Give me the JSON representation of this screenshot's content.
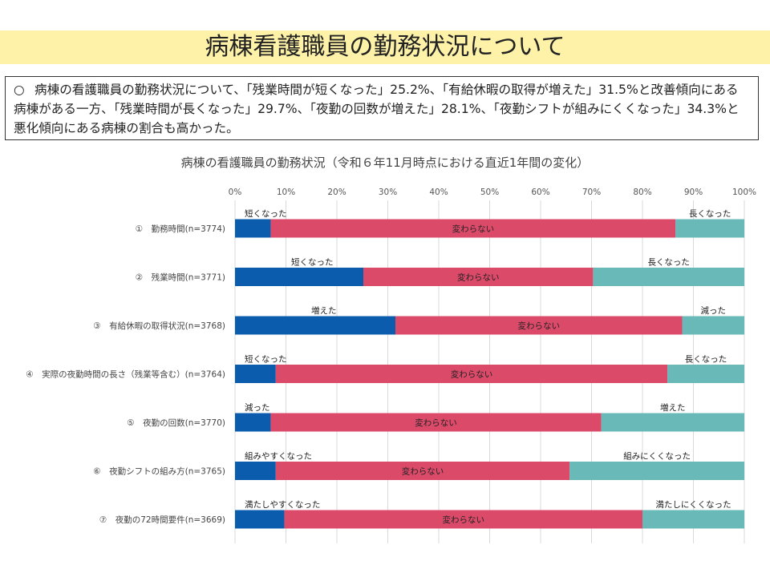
{
  "page": {
    "title": "病棟看護職員の勤務状況について",
    "summary_bullet": "○",
    "summary": "病棟の看護職員の勤務状況について、「残業時間が短くなった」25.2%、「有給休暇の取得が増えた」31.5%と改善傾向にある病棟がある一方、「残業時間が長くなった」29.7%、「夜勤の回数が増えた」28.1%、「夜勤シフトが組みにくくなった」34.3%と悪化傾向にある病棟の割合も高かった。"
  },
  "chart_data": {
    "type": "bar",
    "orientation": "horizontal",
    "stacked": true,
    "title": "病棟の看護職員の勤務状況（令和６年11月時点における直近1年間の変化）",
    "x_ticks": [
      "0%",
      "10%",
      "20%",
      "30%",
      "40%",
      "50%",
      "60%",
      "70%",
      "80%",
      "90%",
      "100%"
    ],
    "xlim": [
      0,
      100
    ],
    "grid": true,
    "colors": [
      "#0b5cad",
      "#dc4a6a",
      "#68b9b7"
    ],
    "categories": [
      "①　勤務時間(n=3774)",
      "②　残業時間(n=3771)",
      "③　有給休暇の取得状況(n=3768)",
      "④　実際の夜勤時間の長さ（残業等含む）(n=3764)",
      "⑤　夜勤の回数(n=3770)",
      "⑥　夜勤シフトの組み方(n=3765)",
      "⑦　夜勤の72時間要件(n=3669)"
    ],
    "series": [
      {
        "values": [
          7.0,
          25.2,
          31.5,
          8.0,
          7.0,
          8.0,
          9.7
        ]
      },
      {
        "values": [
          79.5,
          45.1,
          56.3,
          76.9,
          64.9,
          57.7,
          70.3
        ]
      },
      {
        "values": [
          13.5,
          29.7,
          12.2,
          15.1,
          28.1,
          34.3,
          20.0
        ]
      }
    ],
    "segment_labels": [
      [
        "短くなった",
        "変わらない",
        "長くなった"
      ],
      [
        "短くなった",
        "変わらない",
        "長くなった"
      ],
      [
        "増えた",
        "変わらない",
        "減った"
      ],
      [
        "短くなった",
        "変わらない",
        "長くなった"
      ],
      [
        "減った",
        "変わらない",
        "増えた"
      ],
      [
        "組みやすくなった",
        "変わらない",
        "組みにくくなった"
      ],
      [
        "満たしやすくなった",
        "変わらない",
        "満たしにくくなった"
      ]
    ]
  }
}
